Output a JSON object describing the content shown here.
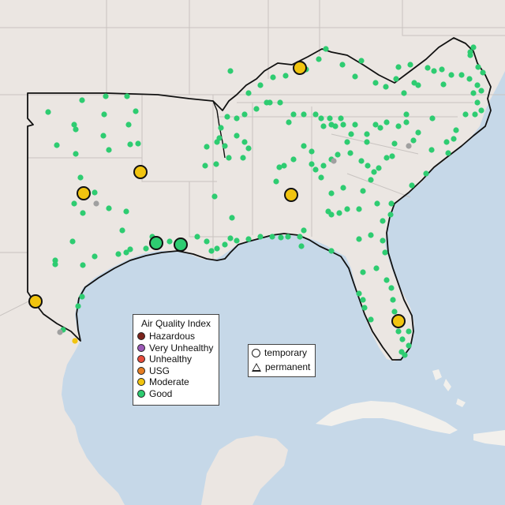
{
  "colors": {
    "water": "#c6d8e8",
    "land": "#ebe6e2",
    "caribbean_land": "#f2f0ec",
    "region_border": "#111111",
    "state_line": "#c8c3c0",
    "good": "#2ecc71",
    "moderate": "#f1c40f",
    "usg": "#e67e22",
    "unhealthy": "#e74c3c",
    "very_unhealthy": "#9b59b6",
    "hazardous": "#7b241c",
    "no_data": "#a0a0a0"
  },
  "legend": {
    "title": "Air Quality Index",
    "items": [
      {
        "label": "Hazardous",
        "color": "#7b241c"
      },
      {
        "label": "Very Unhealthy",
        "color": "#9b59b6"
      },
      {
        "label": "Unhealthy",
        "color": "#e74c3c"
      },
      {
        "label": "USG",
        "color": "#e67e22"
      },
      {
        "label": "Moderate",
        "color": "#f1c40f"
      },
      {
        "label": "Good",
        "color": "#2ecc71"
      }
    ]
  },
  "type_legend": {
    "items": [
      {
        "label": "temporary",
        "shape": "circle"
      },
      {
        "label": "permanent",
        "shape": "triangle"
      }
    ]
  }
}
